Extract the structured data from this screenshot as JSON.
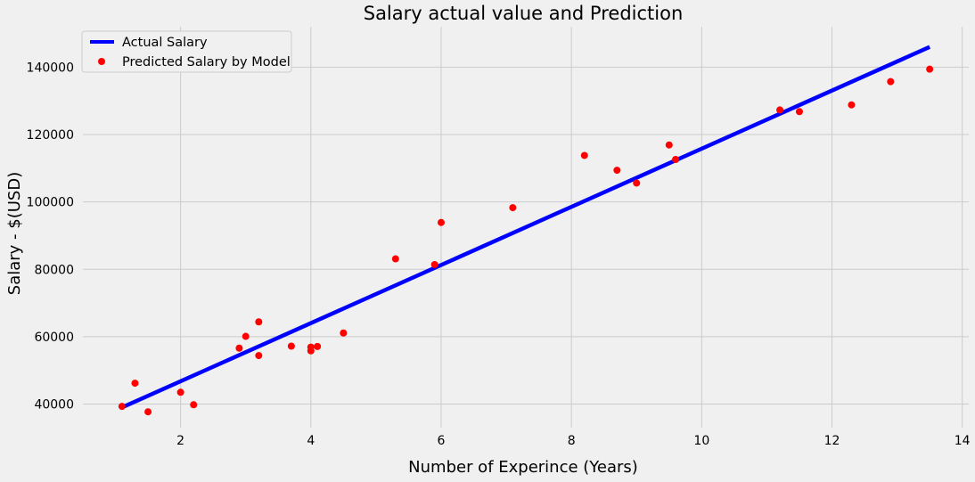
{
  "chart_data": {
    "type": "scatter",
    "title": "Salary actual value and Prediction",
    "xlabel": "Number of Experince (Years)",
    "ylabel": "Salary - $(USD)",
    "xlim": [
      0.5,
      14.1
    ],
    "ylim": [
      33000,
      152000
    ],
    "xticks": [
      2,
      4,
      6,
      8,
      10,
      12,
      14
    ],
    "yticks": [
      40000,
      60000,
      80000,
      100000,
      120000,
      140000
    ],
    "grid": true,
    "legend_position": "top-left",
    "series": [
      {
        "name": "Actual Salary",
        "kind": "line",
        "color": "#0000ff",
        "x": [
          1.1,
          13.5
        ],
        "y": [
          39000,
          146000
        ]
      },
      {
        "name": "Predicted Salary by Model",
        "kind": "scatter",
        "color": "#ff0000",
        "x": [
          1.1,
          1.3,
          1.5,
          2.0,
          2.2,
          2.9,
          3.0,
          3.2,
          3.2,
          3.7,
          4.0,
          4.0,
          4.1,
          4.5,
          5.3,
          5.9,
          6.0,
          7.1,
          8.2,
          8.7,
          9.0,
          9.5,
          9.6,
          11.2,
          11.5,
          12.3,
          12.9,
          13.5
        ],
        "y": [
          39300,
          46200,
          37700,
          43500,
          39800,
          56600,
          60100,
          54400,
          64400,
          57200,
          56900,
          55800,
          57100,
          61100,
          83100,
          81400,
          93900,
          98300,
          113800,
          109400,
          105600,
          116900,
          112600,
          127300,
          126800,
          128800,
          135700,
          139400
        ]
      }
    ]
  }
}
